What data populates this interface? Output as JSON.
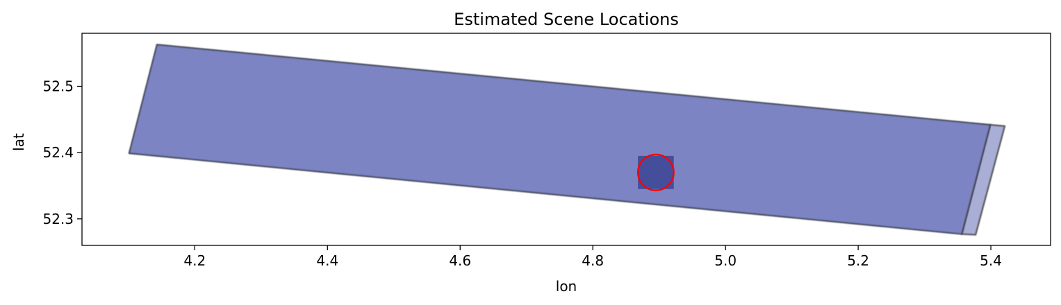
{
  "chart_data": {
    "type": "area",
    "title": "Estimated Scene Locations",
    "xlabel": "lon",
    "ylabel": "lat",
    "xlim": [
      4.03,
      5.49
    ],
    "ylim": [
      52.26,
      52.58
    ],
    "xticks": [
      4.2,
      4.4,
      4.6,
      4.8,
      5.0,
      5.2,
      5.4
    ],
    "xtick_labels": [
      "4.2",
      "4.4",
      "4.6",
      "4.8",
      "5.0",
      "5.2",
      "5.4"
    ],
    "yticks": [
      52.3,
      52.4,
      52.5
    ],
    "ytick_labels": [
      "52.3",
      "52.4",
      "52.5"
    ],
    "grid": false,
    "footprints": [
      {
        "name": "scene-footprint-east-edge",
        "fill": "#2a3b9a",
        "opacity": 0.42,
        "stroke": "#555",
        "polygon": [
          [
            5.399,
            52.442
          ],
          [
            5.421,
            52.44
          ],
          [
            5.377,
            52.276
          ],
          [
            5.356,
            52.277
          ]
        ]
      },
      {
        "name": "scene-footprint-main",
        "fill": "#7b84c3",
        "opacity": 1,
        "stroke": "#44485a",
        "polygon": [
          [
            4.143,
            52.563
          ],
          [
            5.399,
            52.442
          ],
          [
            5.356,
            52.277
          ],
          [
            4.101,
            52.399
          ]
        ]
      }
    ],
    "target_box": {
      "lon_min": 4.868,
      "lon_max": 4.922,
      "lat_min": 52.345,
      "lat_max": 52.395,
      "fill": "#3b4494"
    },
    "target_marker": {
      "lon": 4.895,
      "lat": 52.37,
      "radius_lon": 0.027,
      "radius_lat": 0.027,
      "color": "#ff0000"
    }
  }
}
